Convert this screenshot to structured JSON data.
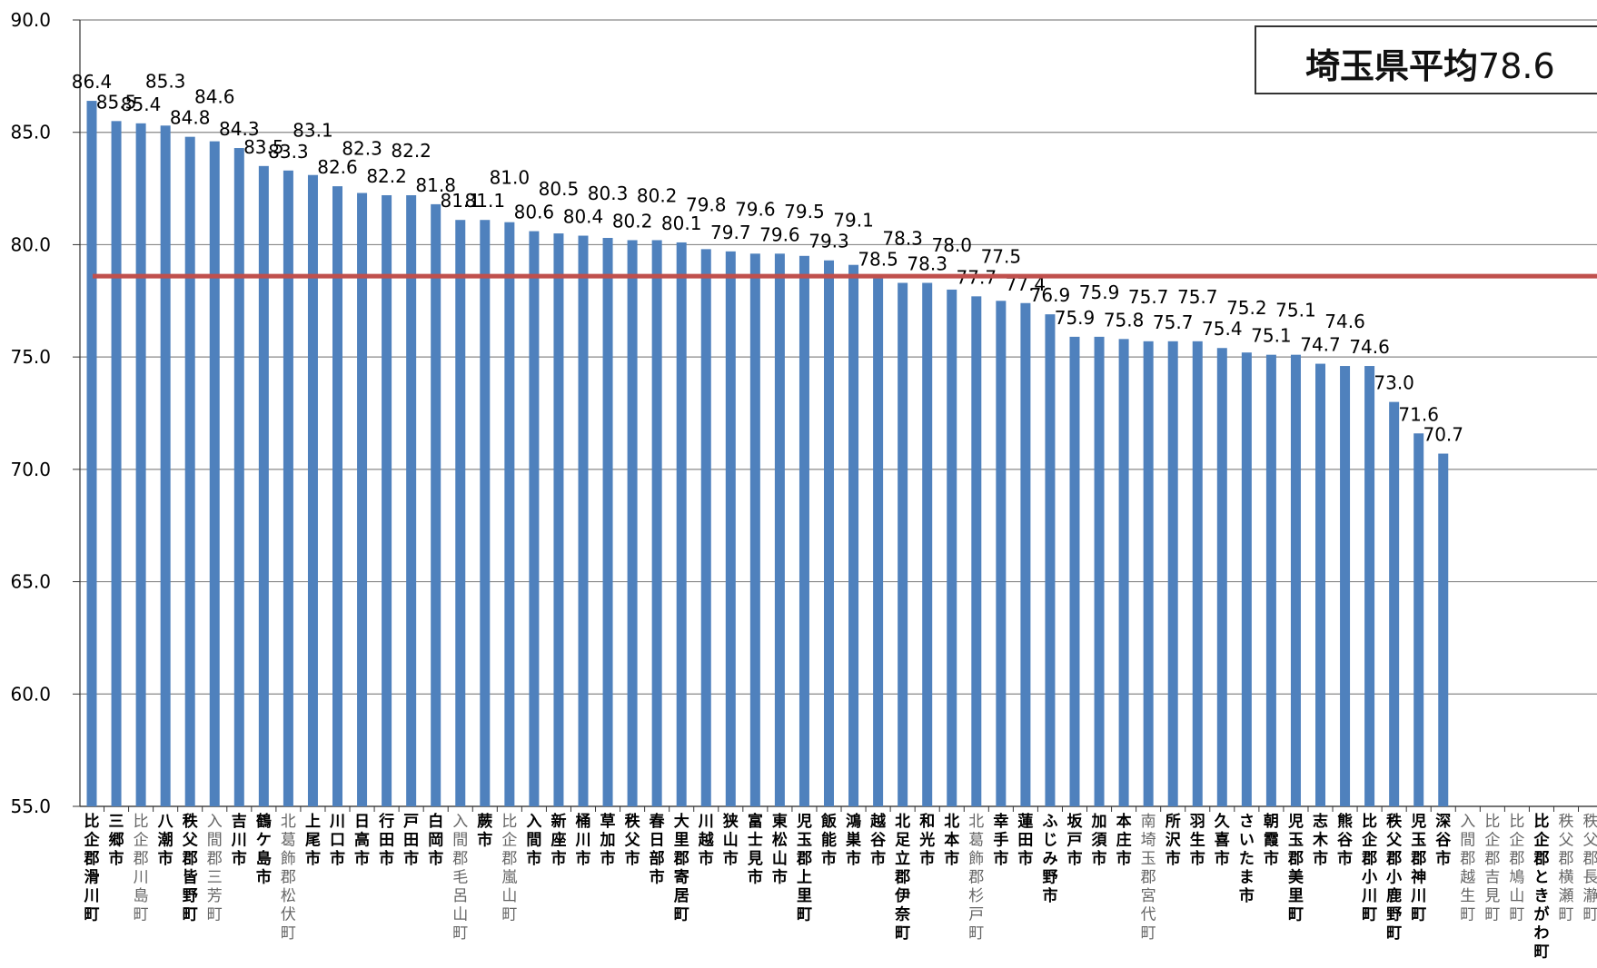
{
  "chart_data": {
    "type": "bar",
    "ylim": [
      55.0,
      90.0
    ],
    "yticks": [
      "90.0",
      "85.0",
      "80.0",
      "75.0",
      "70.0",
      "65.0",
      "60.0",
      "55.0"
    ],
    "grid": true,
    "colors": {
      "bar": "#4f81bd",
      "average_line": "#c0504d",
      "grid": "#888888"
    },
    "average": {
      "label": "埼玉県平均",
      "value": 78.6,
      "value_text": "78.6"
    },
    "categories": [
      "比企郡滑川町",
      "三郷市",
      "比企郡川島町",
      "八潮市",
      "秩父郡皆野町",
      "入間郡三芳町",
      "吉川市",
      "鶴ケ島市",
      "北葛飾郡松伏町",
      "上尾市",
      "川口市",
      "日高市",
      "行田市",
      "戸田市",
      "白岡市",
      "入間郡毛呂山町",
      "蕨市",
      "比企郡嵐山町",
      "入間市",
      "新座市",
      "桶川市",
      "草加市",
      "秩父市",
      "春日部市",
      "大里郡寄居町",
      "川越市",
      "狭山市",
      "富士見市",
      "東松山市",
      "児玉郡上里町",
      "飯能市",
      "鴻巣市",
      "越谷市",
      "北足立郡伊奈町",
      "和光市",
      "北本市",
      "北葛飾郡杉戸町",
      "幸手市",
      "蓮田市",
      "ふじみ野市",
      "坂戸市",
      "加須市",
      "本庄市",
      "南埼玉郡宮代町",
      "所沢市",
      "羽生市",
      "久喜市",
      "さいたま市",
      "朝霞市",
      "児玉郡美里町",
      "志木市",
      "熊谷市",
      "比企郡小川町",
      "秩父郡小鹿野町",
      "児玉郡神川町",
      "深谷市",
      "入間郡越生町",
      "比企郡吉見町",
      "比企郡鳩山町",
      "比企郡ときがわ町",
      "秩父郡横瀬町",
      "秩父郡長瀞町"
    ],
    "values": [
      86.4,
      85.5,
      85.4,
      85.3,
      84.8,
      84.6,
      84.3,
      83.5,
      83.3,
      83.1,
      82.6,
      82.3,
      82.2,
      82.2,
      81.8,
      81.1,
      81.1,
      81.0,
      80.6,
      80.5,
      80.4,
      80.3,
      80.2,
      80.2,
      80.1,
      79.8,
      79.7,
      79.6,
      79.6,
      79.5,
      79.3,
      79.1,
      78.5,
      78.3,
      78.3,
      78.0,
      77.7,
      77.5,
      77.4,
      76.9,
      75.9,
      75.9,
      75.8,
      75.7,
      75.7,
      75.7,
      75.4,
      75.2,
      75.1,
      75.1,
      74.7,
      74.6,
      74.6,
      73.0,
      71.6,
      70.7,
      null,
      null,
      null,
      null,
      null,
      null
    ],
    "value_labels": [
      "86.4",
      "85.5",
      "85.4",
      "85.3",
      "84.8",
      "84.6",
      "84.3",
      "83.5",
      "83.3",
      "83.1",
      "82.6",
      "82.3",
      "82.2",
      "82.2",
      "81.8",
      "81.1",
      "81.1",
      "81.0",
      "80.6",
      "80.5",
      "80.4",
      "80.3",
      "80.2",
      "80.2",
      "80.1",
      "79.8",
      "79.7",
      "79.6",
      "79.6",
      "79.5",
      "79.3",
      "79.1",
      "78.5",
      "78.3",
      "78.3",
      "78.0",
      "77.7",
      "77.5",
      "77.4",
      "76.9",
      "75.9",
      "75.9",
      "75.8",
      "75.7",
      "75.7",
      "75.7",
      "75.4",
      "75.2",
      "75.1",
      "75.1",
      "74.7",
      "74.6",
      "74.6",
      "73.0",
      "71.6",
      "70.7",
      "",
      "",
      "",
      "",
      "",
      ""
    ],
    "gray_categories": [
      2,
      5,
      8,
      15,
      17,
      36,
      43,
      56,
      57,
      58,
      60,
      61
    ]
  }
}
